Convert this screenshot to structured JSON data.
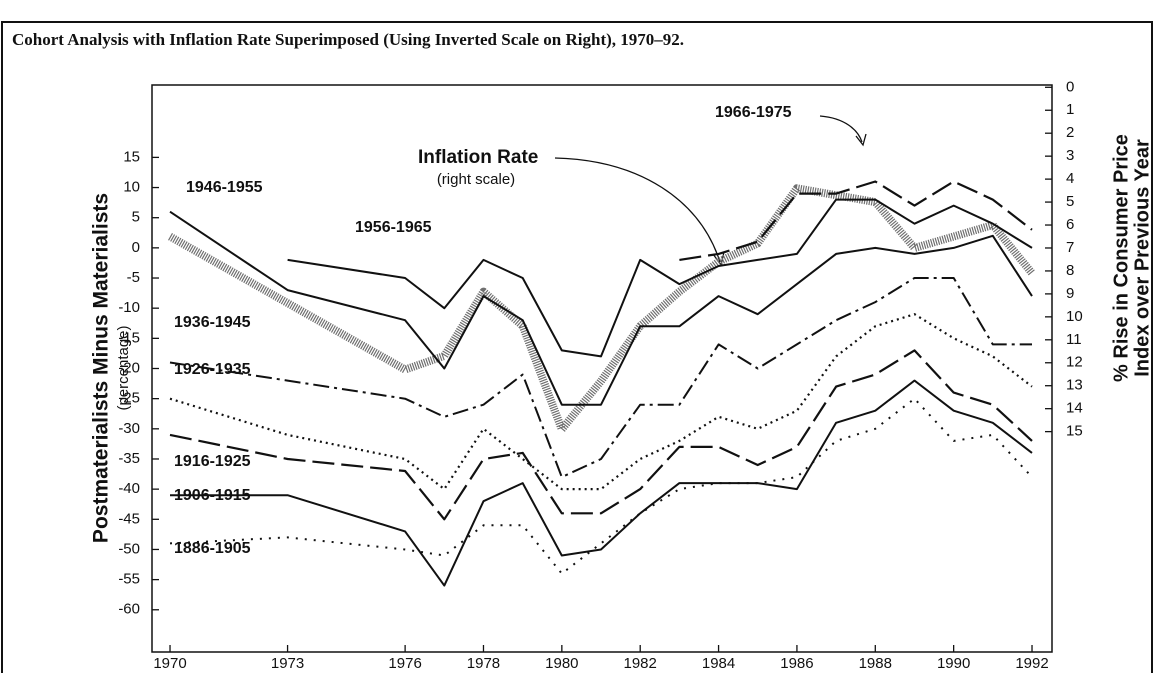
{
  "chart_data": {
    "type": "line",
    "title": "Cohort Analysis with Inflation Rate Superimposed (Using Inverted Scale on Right), 1970–92.",
    "y_label": "Postmaterialists Minus Materialists",
    "y_label_sub": "(percentage)",
    "y2_label": [
      "% Rise in Consumer Price",
      "Index over Previous Year"
    ],
    "annotations": [
      "(right scale)"
    ],
    "x": [
      1970,
      1973,
      1976,
      1977,
      1978,
      1979,
      1980,
      1981,
      1982,
      1983,
      1984,
      1985,
      1986,
      1987,
      1988,
      1989,
      1990,
      1991,
      1992
    ],
    "xlim": [
      1969.54,
      1992.51
    ],
    "xticks": [
      1970,
      1973,
      1976,
      1978,
      1980,
      1982,
      1984,
      1986,
      1988,
      1990,
      1992
    ],
    "ylim": [
      -67,
      27
    ],
    "yticks": [
      15,
      10,
      5,
      0,
      -5,
      -10,
      -15,
      -20,
      -25,
      -30,
      -35,
      -40,
      -45,
      -50,
      -55,
      -60
    ],
    "y2lim": [
      24.6,
      -0.1
    ],
    "y2ticks": [
      0,
      1,
      2,
      3,
      4,
      5,
      6,
      7,
      8,
      9,
      10,
      11,
      12,
      13,
      14,
      15
    ],
    "series": [
      {
        "name": "1966-1975",
        "color": "#111",
        "style": "dashed",
        "values": [
          null,
          null,
          null,
          null,
          null,
          null,
          null,
          null,
          null,
          -2,
          -1,
          1,
          9,
          9,
          11,
          7,
          11,
          8,
          3
        ]
      },
      {
        "name": "1956-1965",
        "color": "#111",
        "style": "solid",
        "values": [
          null,
          -2,
          -5,
          -10,
          -2,
          -5,
          -17,
          -18,
          -2,
          -6,
          -3,
          -2,
          -1,
          8,
          8,
          4,
          7,
          4,
          0
        ]
      },
      {
        "name": "1946-1955",
        "color": "#111",
        "style": "solid",
        "values": [
          6,
          -7,
          -12,
          -20,
          -8,
          -12,
          -26,
          -26,
          -13,
          -13,
          -8,
          -11,
          -6,
          -1,
          0,
          -1,
          0,
          2,
          -8
        ]
      },
      {
        "name": "1936-1945",
        "color": "#111",
        "style": "dashdot",
        "values": [
          -19,
          -22,
          -25,
          -28,
          -26,
          -21,
          -38,
          -35,
          -26,
          -26,
          -16,
          -20,
          -16,
          -12,
          -9,
          -5,
          -5,
          -16,
          -16
        ]
      },
      {
        "name": "1926-1935",
        "color": "#111",
        "style": "dotted",
        "values": [
          -25,
          -31,
          -35,
          -40,
          -30,
          -35,
          -40,
          -40,
          -35,
          -32,
          -28,
          -30,
          -27,
          -18,
          -13,
          -11,
          -15,
          -18,
          -23
        ]
      },
      {
        "name": "1916-1925",
        "color": "#111",
        "style": "dashed",
        "values": [
          -31,
          -35,
          -37,
          -45,
          -35,
          -34,
          -44,
          -44,
          -40,
          -33,
          -33,
          -36,
          -33,
          -23,
          -21,
          -17,
          -24,
          -26,
          -32
        ]
      },
      {
        "name": "1906-1915",
        "color": "#111",
        "style": "solid",
        "values": [
          -41,
          -41,
          -47,
          -56,
          -42,
          -39,
          -51,
          -50,
          -44,
          -39,
          -39,
          -39,
          -40,
          -29,
          -27,
          -22,
          -27,
          -29,
          -34
        ]
      },
      {
        "name": "1886-1905",
        "color": "#111",
        "style": "sparsedot",
        "values": [
          -49,
          -48,
          -50,
          -51,
          -46,
          -46,
          -54,
          -49,
          -44,
          -40,
          -39,
          -39,
          -38,
          -32,
          -30,
          -25,
          -32,
          -31,
          -38
        ]
      },
      {
        "name": "Inflation Rate",
        "color": "#6f6f6f",
        "style": "hatched",
        "axis": "y2",
        "values": [
          6.5,
          9.4,
          12.3,
          11.7,
          8.9,
          10.4,
          14.9,
          12.8,
          10.4,
          8.9,
          7.6,
          6.8,
          4.4,
          4.7,
          5.0,
          7.0,
          6.5,
          6.0,
          8.1
        ]
      }
    ]
  }
}
